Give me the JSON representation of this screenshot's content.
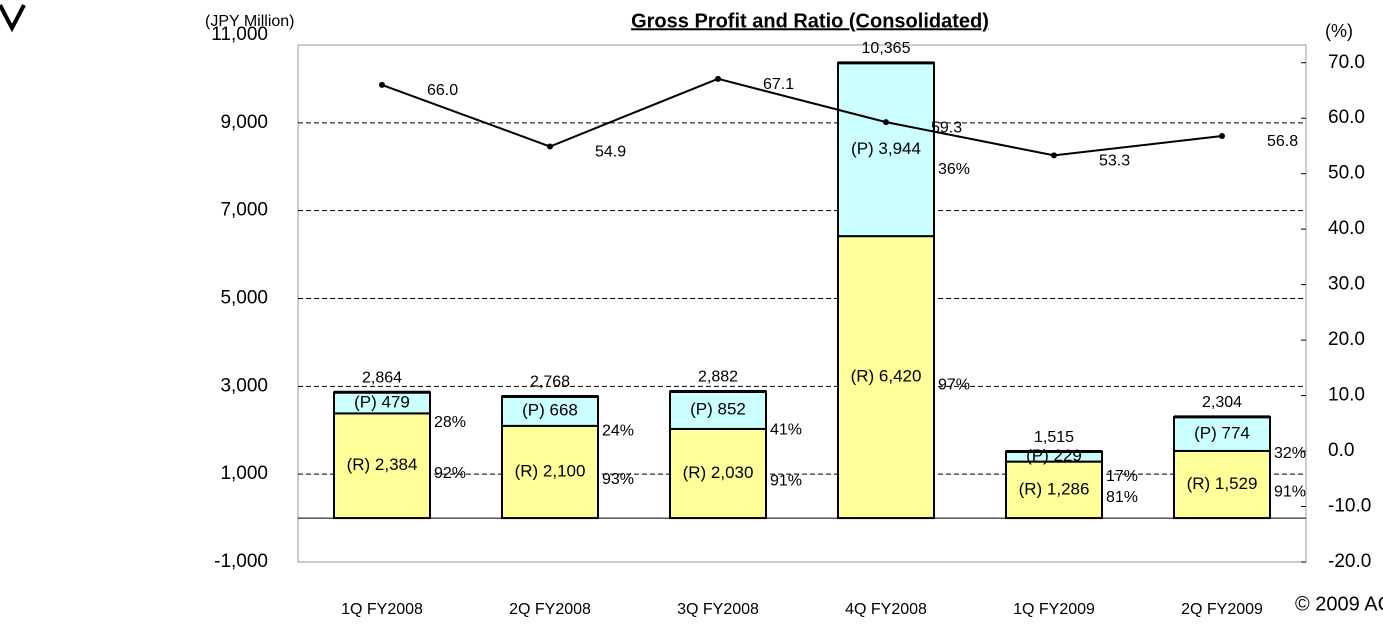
{
  "chart_data": {
    "type": "bar",
    "title": "Gross Profit and Ratio (Consolidated)",
    "y_label": "(JPY Million)",
    "y2_label": "(%)",
    "copyright": "© 2009 AC",
    "categories": [
      "1Q FY2008",
      "2Q FY2008",
      "3Q FY2008",
      "4Q FY2008",
      "1Q FY2009",
      "2Q FY2009"
    ],
    "series": [
      {
        "name": "(R)",
        "color": "#ffff99",
        "values": [
          2384,
          2100,
          2030,
          6420,
          1286,
          1529
        ],
        "value_labels": [
          "(R) 2,384",
          "(R) 2,100",
          "(R) 2,030",
          "(R) 6,420",
          "(R) 1,286",
          "(R) 1,529"
        ],
        "notes": [
          "92%",
          "93%",
          "91%",
          "97%",
          "81%",
          "91%"
        ]
      },
      {
        "name": "(P)",
        "color": "#ccffff",
        "values": [
          479,
          668,
          852,
          3944,
          229,
          774
        ],
        "value_labels": [
          "(P) 479",
          "(P) 668",
          "(P) 852",
          "(P) 3,944",
          "(P) 229",
          "(P) 774"
        ],
        "notes": [
          "28%",
          "24%",
          "41%",
          "36%",
          "17%",
          "32%"
        ]
      },
      {
        "name": "Ratio",
        "type": "line",
        "axis": "y2",
        "color": "#000000",
        "values": [
          66.0,
          54.9,
          67.1,
          59.3,
          53.3,
          56.8
        ],
        "value_labels": [
          "66.0",
          "54.9",
          "67.1",
          "59.3",
          "53.3",
          "56.8"
        ]
      }
    ],
    "totals": [
      2864,
      2768,
      2882,
      10365,
      1515,
      2304
    ],
    "total_labels": [
      "2,864",
      "2,768",
      "2,882",
      "10,365",
      "1,515",
      "2,304"
    ],
    "ylim": [
      -1000,
      11000
    ],
    "yticks": [
      {
        "value": -1000,
        "label": "-1,000"
      },
      {
        "value": 1000,
        "label": "1,000"
      },
      {
        "value": 3000,
        "label": "3,000"
      },
      {
        "value": 5000,
        "label": "5,000"
      },
      {
        "value": 7000,
        "label": "7,000"
      },
      {
        "value": 9000,
        "label": "9,000"
      },
      {
        "value": 11000,
        "label": "11,000"
      }
    ],
    "y2lim": [
      -20,
      75
    ],
    "y2ticks": [
      {
        "value": -20,
        "label": "-20.0"
      },
      {
        "value": -10,
        "label": "-10.0"
      },
      {
        "value": 0,
        "label": "0.0"
      },
      {
        "value": 10,
        "label": "10.0"
      },
      {
        "value": 20,
        "label": "20.0"
      },
      {
        "value": 30,
        "label": "30.0"
      },
      {
        "value": 40,
        "label": "40.0"
      },
      {
        "value": 50,
        "label": "50.0"
      },
      {
        "value": 60,
        "label": "60.0"
      },
      {
        "value": 70,
        "label": "70.0"
      }
    ],
    "grid": true
  }
}
